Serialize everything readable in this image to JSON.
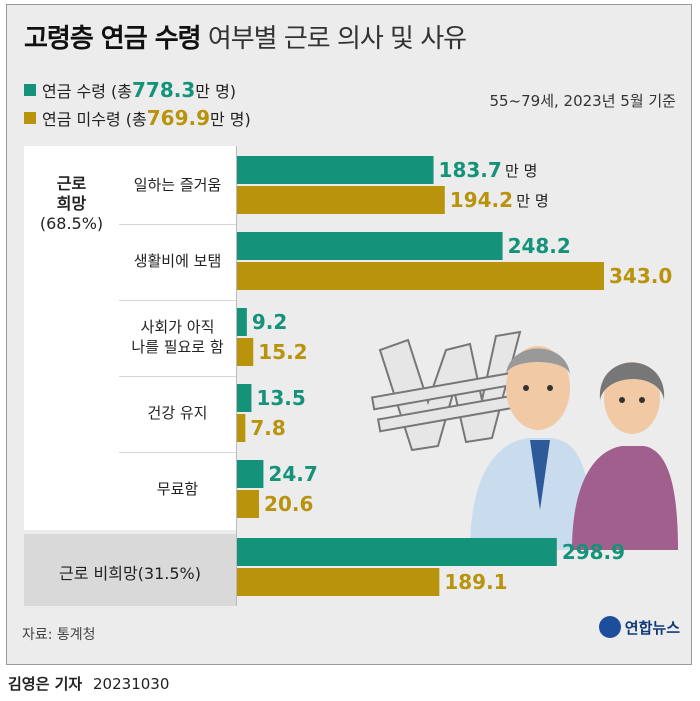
{
  "title": {
    "bold": "고령층 연금 수령",
    "rest": "여부별 근로 의사 및 사유"
  },
  "basis": "55~79세, 2023년 5월 기준",
  "legend": [
    {
      "prefix": "연금 수령 (총 ",
      "total": "778.3",
      "suffix": "만 명)",
      "color": "#14937a"
    },
    {
      "prefix": "연금 미수령 (총 ",
      "total": "769.9",
      "suffix": "만 명)",
      "color": "#b8930b"
    }
  ],
  "groups": {
    "wish": {
      "line1": "근로",
      "line2": "희망",
      "pct": "(68.5%)"
    },
    "nonwish": "근로 비희망(31.5%)"
  },
  "unit": "만 명",
  "chart_data": {
    "type": "bar",
    "orientation": "horizontal",
    "categories": [
      "일하는 즐거움",
      "생활비에 보탬",
      "사회가 아직 나를 필요로 함",
      "건강 유지",
      "무료함",
      "근로 비희망(31.5%)"
    ],
    "category_lines": [
      [
        "일하는 즐거움"
      ],
      [
        "생활비에 보탬"
      ],
      [
        "사회가 아직",
        "나를 필요로 함"
      ],
      [
        "건강 유지"
      ],
      [
        "무료함"
      ],
      [
        "근로 비희망(31.5%)"
      ]
    ],
    "series": [
      {
        "name": "연금 수령",
        "values": [
          183.7,
          248.2,
          9.2,
          13.5,
          24.7,
          298.9
        ],
        "labels": [
          "183.7",
          "248.2",
          "9.2",
          "13.5",
          "24.7",
          "298.9"
        ]
      },
      {
        "name": "연금 미수령",
        "values": [
          194.2,
          343.0,
          15.2,
          7.8,
          20.6,
          189.1
        ],
        "labels": [
          "194.2",
          "343.0",
          "15.2",
          "7.8",
          "20.6",
          "189.1"
        ]
      }
    ],
    "xlim": [
      0,
      370
    ]
  },
  "source": "자료: 통계청",
  "logo": "연합뉴스",
  "credit": {
    "name": "김영은 기자",
    "date": "20231030"
  }
}
